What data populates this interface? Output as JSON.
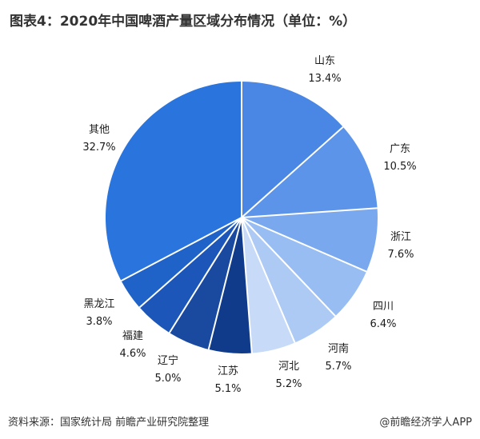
{
  "header": {
    "title": "图表4：2020年中国啤酒产量区域分布情况（单位：%）"
  },
  "chart_data": {
    "type": "pie",
    "title": "图表4：2020年中国啤酒产量区域分布情况（单位：%）",
    "unit": "%",
    "slices": [
      {
        "name": "山东",
        "value": 13.4,
        "value_label": "13.4%",
        "color": "#4a86e4"
      },
      {
        "name": "广东",
        "value": 10.5,
        "value_label": "10.5%",
        "color": "#5c94ea"
      },
      {
        "name": "浙江",
        "value": 7.6,
        "value_label": "7.6%",
        "color": "#7aa8ee"
      },
      {
        "name": "四川",
        "value": 6.4,
        "value_label": "6.4%",
        "color": "#97bdf3"
      },
      {
        "name": "河南",
        "value": 5.7,
        "value_label": "5.7%",
        "color": "#adcaf4"
      },
      {
        "name": "河北",
        "value": 5.2,
        "value_label": "5.2%",
        "color": "#c7dbf8"
      },
      {
        "name": "江苏",
        "value": 5.1,
        "value_label": "5.1%",
        "color": "#103a8a"
      },
      {
        "name": "辽宁",
        "value": 5.0,
        "value_label": "5.0%",
        "color": "#1a4aa0"
      },
      {
        "name": "福建",
        "value": 4.6,
        "value_label": "4.6%",
        "color": "#1c56b8"
      },
      {
        "name": "黑龙江",
        "value": 3.8,
        "value_label": "3.8%",
        "color": "#1f62c8"
      },
      {
        "name": "其他",
        "value": 32.7,
        "value_label": "32.7%",
        "color": "#2a74de"
      }
    ]
  },
  "footer": {
    "source": "资料来源：国家统计局 前瞻产业研究院整理",
    "brand": "@前瞻经济学人APP"
  }
}
